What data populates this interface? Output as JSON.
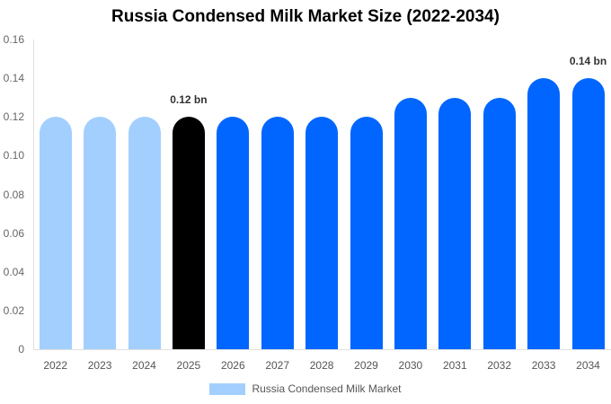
{
  "chart_data": {
    "type": "bar",
    "title": "Russia Condensed Milk Market Size (2022-2034)",
    "xlabel": "",
    "ylabel": "",
    "categories": [
      "2022",
      "2023",
      "2024",
      "2025",
      "2026",
      "2027",
      "2028",
      "2029",
      "2030",
      "2031",
      "2032",
      "2033",
      "2034"
    ],
    "series": [
      {
        "name": "Russia Condensed Milk Market",
        "values": [
          0.12,
          0.12,
          0.12,
          0.12,
          0.12,
          0.12,
          0.12,
          0.12,
          0.13,
          0.13,
          0.13,
          0.14,
          0.14
        ]
      }
    ],
    "bar_colors": [
      "#a3cfff",
      "#a3cfff",
      "#a3cfff",
      "#000000",
      "#0066ff",
      "#0066ff",
      "#0066ff",
      "#0066ff",
      "#0066ff",
      "#0066ff",
      "#0066ff",
      "#0066ff",
      "#0066ff"
    ],
    "ylim": [
      0,
      0.16
    ],
    "yticks": [
      "0",
      "0.02",
      "0.04",
      "0.06",
      "0.08",
      "0.10",
      "0.12",
      "0.14",
      "0.16"
    ],
    "annotations": [
      {
        "index": 3,
        "text": "0.12 bn"
      },
      {
        "index": 12,
        "text": "0.14 bn"
      }
    ],
    "grid": false,
    "legend_position": "bottom",
    "legend_color": "#a3cfff"
  }
}
